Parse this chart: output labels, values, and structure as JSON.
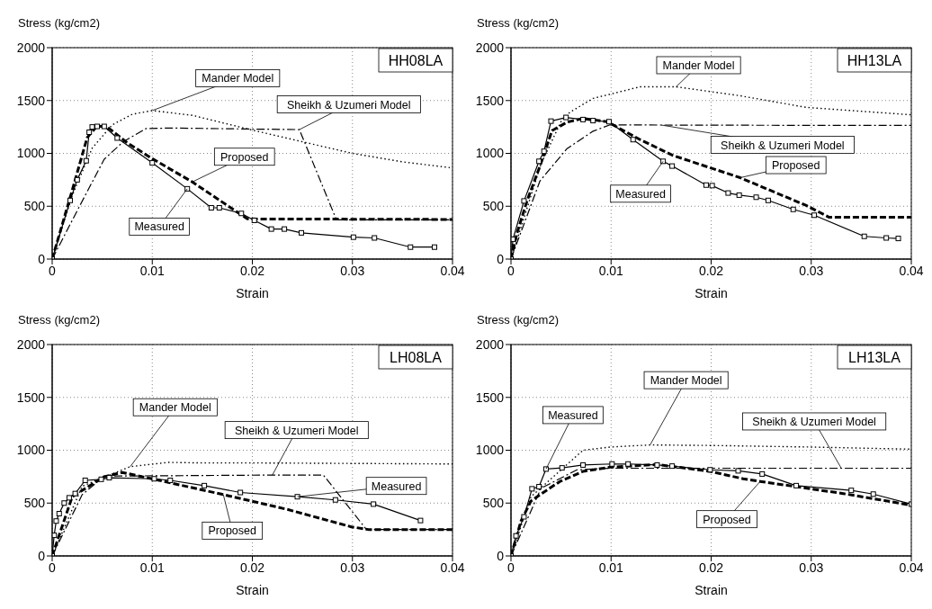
{
  "chart_data": [
    {
      "type": "line",
      "title": "HH08LA",
      "xlabel": "Strain",
      "ylabel": "Stress (kg/cm2)",
      "xlim": [
        0,
        0.04
      ],
      "xticks": [
        0,
        0.01,
        0.02,
        0.03,
        0.04
      ],
      "ylim": [
        0,
        2000
      ],
      "yticks": [
        0,
        500,
        1000,
        1500,
        2000
      ],
      "grid": true,
      "series": [
        {
          "name": "Measured",
          "color": "#000000",
          "line_style": "solid",
          "marker": "square",
          "x": [
            0,
            0.0018,
            0.0025,
            0.0034,
            0.0037,
            0.004,
            0.0045,
            0.0052,
            0.0065,
            0.01,
            0.0135,
            0.0159,
            0.0167,
            0.0189,
            0.0202,
            0.0219,
            0.0232,
            0.0249,
            0.0301,
            0.0322,
            0.0358,
            0.0382
          ],
          "values": [
            0,
            555,
            750,
            930,
            1200,
            1250,
            1255,
            1255,
            1145,
            910,
            665,
            485,
            485,
            432,
            366,
            284,
            284,
            248,
            207,
            200,
            113,
            113
          ]
        },
        {
          "name": "Proposed",
          "color": "#000000",
          "line_style": "dashed",
          "marker": "none",
          "x": [
            0,
            0.002,
            0.0035,
            0.0045,
            0.0055,
            0.0075,
            0.01,
            0.014,
            0.0195,
            0.04
          ],
          "values": [
            0,
            650,
            1150,
            1260,
            1250,
            1100,
            950,
            730,
            380,
            375
          ]
        },
        {
          "name": "Mander Model",
          "color": "#000000",
          "line_style": "dotted",
          "marker": "none",
          "x": [
            0,
            0.002,
            0.004,
            0.006,
            0.008,
            0.01,
            0.014,
            0.02,
            0.025,
            0.03,
            0.035,
            0.04
          ],
          "values": [
            0,
            600,
            1050,
            1270,
            1370,
            1405,
            1360,
            1220,
            1110,
            1000,
            920,
            862
          ]
        },
        {
          "name": "Sheikh & Uzumeri Model",
          "color": "#000000",
          "line_style": "dashdot",
          "marker": "none",
          "x": [
            0,
            0.0029,
            0.0052,
            0.0071,
            0.0094,
            0.012,
            0.02,
            0.0247,
            0.0284,
            0.04
          ],
          "values": [
            0,
            530,
            945,
            1110,
            1235,
            1240,
            1230,
            1225,
            372,
            372
          ]
        }
      ]
    },
    {
      "type": "line",
      "title": "HH13LA",
      "xlabel": "Strain",
      "ylabel": "Stress (kg/cm2)",
      "xlim": [
        0,
        0.04
      ],
      "xticks": [
        0,
        0.01,
        0.02,
        0.03,
        0.04
      ],
      "ylim": [
        0,
        2000
      ],
      "yticks": [
        0,
        500,
        1000,
        1500,
        2000
      ],
      "grid": true,
      "series": [
        {
          "name": "Measured",
          "color": "#000000",
          "line_style": "solid",
          "marker": "square",
          "x": [
            0,
            0.0002,
            0.0013,
            0.0028,
            0.0033,
            0.004,
            0.0055,
            0.0072,
            0.0082,
            0.0098,
            0.0122,
            0.0152,
            0.0161,
            0.0195,
            0.0201,
            0.0217,
            0.0228,
            0.0245,
            0.0257,
            0.0282,
            0.0303,
            0.0353,
            0.0375,
            0.0387
          ],
          "values": [
            0,
            188,
            550,
            925,
            1020,
            1305,
            1340,
            1320,
            1310,
            1300,
            1130,
            925,
            880,
            700,
            695,
            625,
            605,
            585,
            555,
            470,
            415,
            215,
            200,
            195
          ]
        },
        {
          "name": "Proposed",
          "color": "#000000",
          "line_style": "dashed",
          "marker": "none",
          "x": [
            0,
            0.0006,
            0.0016,
            0.0029,
            0.0041,
            0.0056,
            0.0072,
            0.0096,
            0.0129,
            0.0162,
            0.0229,
            0.0295,
            0.0318,
            0.04
          ],
          "values": [
            0,
            245,
            550,
            880,
            1215,
            1295,
            1330,
            1300,
            1130,
            980,
            770,
            507,
            395,
            395
          ]
        },
        {
          "name": "Mander Model",
          "color": "#000000",
          "line_style": "dotted",
          "marker": "none",
          "x": [
            0,
            0.003,
            0.005,
            0.0059,
            0.0082,
            0.0129,
            0.0165,
            0.0229,
            0.0295,
            0.04
          ],
          "values": [
            0,
            900,
            1300,
            1390,
            1520,
            1630,
            1630,
            1545,
            1435,
            1365
          ]
        },
        {
          "name": "Sheikh & Uzumeri Model",
          "color": "#000000",
          "line_style": "dashdot",
          "marker": "none",
          "x": [
            0,
            0.0029,
            0.0056,
            0.0082,
            0.0099,
            0.015,
            0.03,
            0.04
          ],
          "values": [
            0,
            740,
            1045,
            1210,
            1270,
            1268,
            1265,
            1265
          ]
        }
      ]
    },
    {
      "type": "line",
      "title": "LH08LA",
      "xlabel": "Strain",
      "ylabel": "Stress (kg/cm2)",
      "xlim": [
        0,
        0.04
      ],
      "xticks": [
        0,
        0.01,
        0.02,
        0.03,
        0.04
      ],
      "ylim": [
        0,
        2000
      ],
      "yticks": [
        0,
        500,
        1000,
        1500,
        2000
      ],
      "grid": true,
      "series": [
        {
          "name": "Measured",
          "color": "#000000",
          "line_style": "solid",
          "marker": "square",
          "x": [
            0,
            0.0002,
            0.0004,
            0.0007,
            0.0012,
            0.0017,
            0.0023,
            0.0033,
            0.0049,
            0.0057,
            0.0102,
            0.0118,
            0.0152,
            0.0188,
            0.0245,
            0.0283,
            0.0321,
            0.0368
          ],
          "values": [
            0,
            195,
            330,
            400,
            500,
            550,
            590,
            715,
            725,
            740,
            730,
            715,
            665,
            600,
            560,
            530,
            490,
            335
          ]
        },
        {
          "name": "Proposed",
          "color": "#000000",
          "line_style": "dashed",
          "marker": "none",
          "x": [
            0,
            0.002,
            0.0052,
            0.007,
            0.0107,
            0.0171,
            0.0235,
            0.0299,
            0.0316,
            0.04
          ],
          "values": [
            0,
            560,
            750,
            790,
            715,
            580,
            440,
            275,
            250,
            250
          ]
        },
        {
          "name": "Mander Model",
          "color": "#000000",
          "line_style": "dotted",
          "marker": "none",
          "x": [
            0,
            0.003,
            0.0078,
            0.0116,
            0.015,
            0.02,
            0.03,
            0.04
          ],
          "values": [
            0,
            660,
            845,
            885,
            880,
            880,
            875,
            870
          ]
        },
        {
          "name": "Sheikh & Uzumeri Model",
          "color": "#000000",
          "line_style": "dashdot",
          "marker": "none",
          "x": [
            0,
            0.003,
            0.0052,
            0.022,
            0.0271,
            0.0314,
            0.04
          ],
          "values": [
            0,
            580,
            755,
            765,
            765,
            250,
            250
          ]
        }
      ]
    },
    {
      "type": "line",
      "title": "LH13LA",
      "xlabel": "Strain",
      "ylabel": "Stress (kg/cm2)",
      "xlim": [
        0,
        0.04
      ],
      "xticks": [
        0,
        0.01,
        0.02,
        0.03,
        0.04
      ],
      "ylim": [
        0,
        2000
      ],
      "yticks": [
        0,
        500,
        1000,
        1500,
        2000
      ],
      "grid": true,
      "series": [
        {
          "name": "Measured",
          "color": "#000000",
          "line_style": "solid",
          "marker": "square",
          "x": [
            0,
            0.0005,
            0.0013,
            0.0021,
            0.0028,
            0.0035,
            0.0051,
            0.0072,
            0.0101,
            0.0117,
            0.0146,
            0.0161,
            0.0199,
            0.0227,
            0.0251,
            0.0285,
            0.034,
            0.0362,
            0.04
          ],
          "values": [
            0,
            190,
            370,
            635,
            655,
            822,
            833,
            860,
            870,
            870,
            860,
            850,
            815,
            805,
            775,
            665,
            620,
            585,
            490
          ]
        },
        {
          "name": "Proposed",
          "color": "#000000",
          "line_style": "dashed",
          "marker": "none",
          "x": [
            0,
            0.001,
            0.002,
            0.0033,
            0.0049,
            0.0072,
            0.0099,
            0.0146,
            0.0199,
            0.0232,
            0.0249,
            0.0285,
            0.0332,
            0.04
          ],
          "values": [
            0,
            330,
            520,
            605,
            705,
            800,
            840,
            865,
            800,
            730,
            705,
            655,
            590,
            480
          ]
        },
        {
          "name": "Mander Model",
          "color": "#000000",
          "line_style": "dotted",
          "marker": "none",
          "x": [
            0,
            0.002,
            0.0072,
            0.0099,
            0.0139,
            0.02,
            0.03,
            0.04
          ],
          "values": [
            0,
            560,
            1000,
            1030,
            1050,
            1045,
            1030,
            1010
          ]
        },
        {
          "name": "Sheikh & Uzumeri Model",
          "color": "#000000",
          "line_style": "dashdot",
          "marker": "none",
          "x": [
            0,
            0.003,
            0.0066,
            0.0099,
            0.033,
            0.04
          ],
          "values": [
            0,
            640,
            815,
            830,
            830,
            830
          ]
        }
      ]
    }
  ]
}
